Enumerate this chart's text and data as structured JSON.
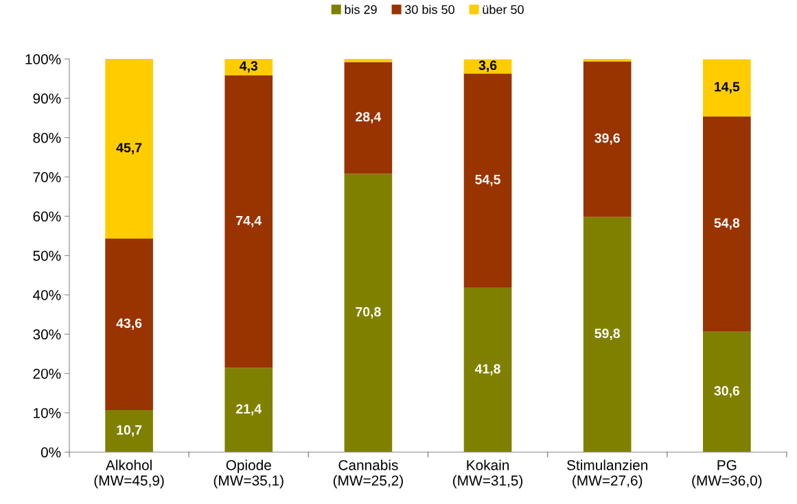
{
  "chart_data": {
    "type": "bar",
    "stacked": true,
    "categories": [
      "Alkohol\n(MW=45,9)",
      "Opiode\n(MW=35,1)",
      "Cannabis\n(MW=25,2)",
      "Kokain\n(MW=31,5)",
      "Stimulanzien\n(MW=27,6)",
      "PG\n(MW=36,0)"
    ],
    "series": [
      {
        "name": "bis 29",
        "color": "#808000",
        "values": [
          10.7,
          21.4,
          70.8,
          41.8,
          59.8,
          30.6
        ],
        "value_labels": [
          "10,7",
          "21,4",
          "70,8",
          "41,8",
          "59,8",
          "30,6"
        ]
      },
      {
        "name": "30 bis 50",
        "color": "#993300",
        "values": [
          43.6,
          74.4,
          28.4,
          54.5,
          39.6,
          54.8
        ],
        "value_labels": [
          "43,6",
          "74,4",
          "28,4",
          "54,5",
          "39,6",
          "54,8"
        ]
      },
      {
        "name": "über 50",
        "color": "#ffcc00",
        "values": [
          45.7,
          4.3,
          0.8,
          3.6,
          0.6,
          14.5
        ],
        "value_labels": [
          "45,7",
          "4,3",
          null,
          "3,6",
          null,
          "14,5"
        ]
      }
    ],
    "ylim": [
      0,
      100
    ],
    "yticks": [
      {
        "value": 0,
        "label": "0%"
      },
      {
        "value": 10,
        "label": "10%"
      },
      {
        "value": 20,
        "label": "20%"
      },
      {
        "value": 30,
        "label": "30%"
      },
      {
        "value": 40,
        "label": "40%"
      },
      {
        "value": 50,
        "label": "50%"
      },
      {
        "value": 60,
        "label": "60%"
      },
      {
        "value": 70,
        "label": "70%"
      },
      {
        "value": 80,
        "label": "80%"
      },
      {
        "value": 90,
        "label": "90%"
      },
      {
        "value": 100,
        "label": "100%"
      }
    ],
    "grid": false,
    "legend": "top"
  }
}
